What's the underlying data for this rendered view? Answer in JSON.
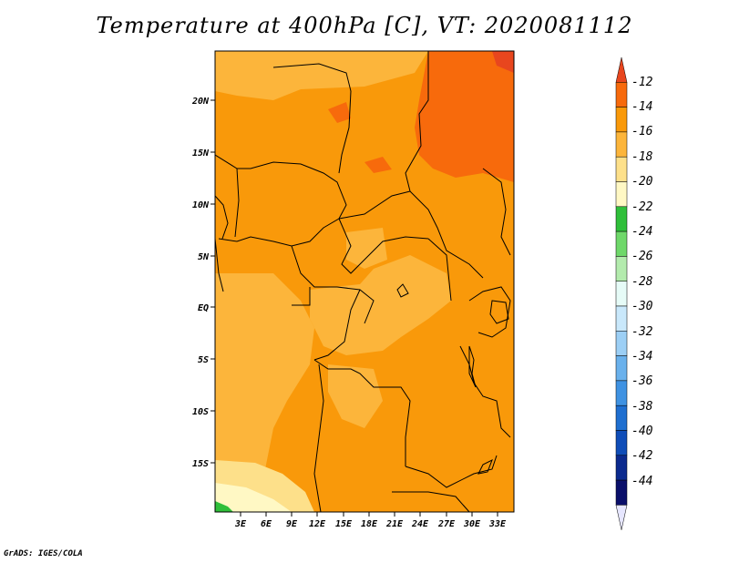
{
  "title": "Temperature at 400hPa [C], VT: 2020081112",
  "credit": "GrADS: IGES/COLA",
  "map": {
    "lat_labels": [
      "20N",
      "15N",
      "10N",
      "5N",
      "EQ",
      "5S",
      "10S",
      "15S"
    ],
    "lon_labels": [
      "3E",
      "6E",
      "9E",
      "12E",
      "15E",
      "18E",
      "21E",
      "24E",
      "27E",
      "30E",
      "33E"
    ]
  },
  "colorbar": {
    "labels": [
      "-12",
      "-14",
      "-16",
      "-18",
      "-20",
      "-22",
      "-24",
      "-26",
      "-28",
      "-30",
      "-32",
      "-34",
      "-36",
      "-38",
      "-40",
      "-42",
      "-44"
    ],
    "colors": [
      "#e8461e",
      "#f76a0c",
      "#f9990a",
      "#fcb53b",
      "#fde08a",
      "#fff8c4",
      "#2fbf3a",
      "#6fd86a",
      "#b3ebad",
      "#e6fbf7",
      "#c9e8fb",
      "#9ccff5",
      "#6ab1ec",
      "#3f92e2",
      "#1f6fd0",
      "#0f4db8",
      "#0b2a8e",
      "#0a0f6a",
      "#e6e6ff"
    ]
  }
}
